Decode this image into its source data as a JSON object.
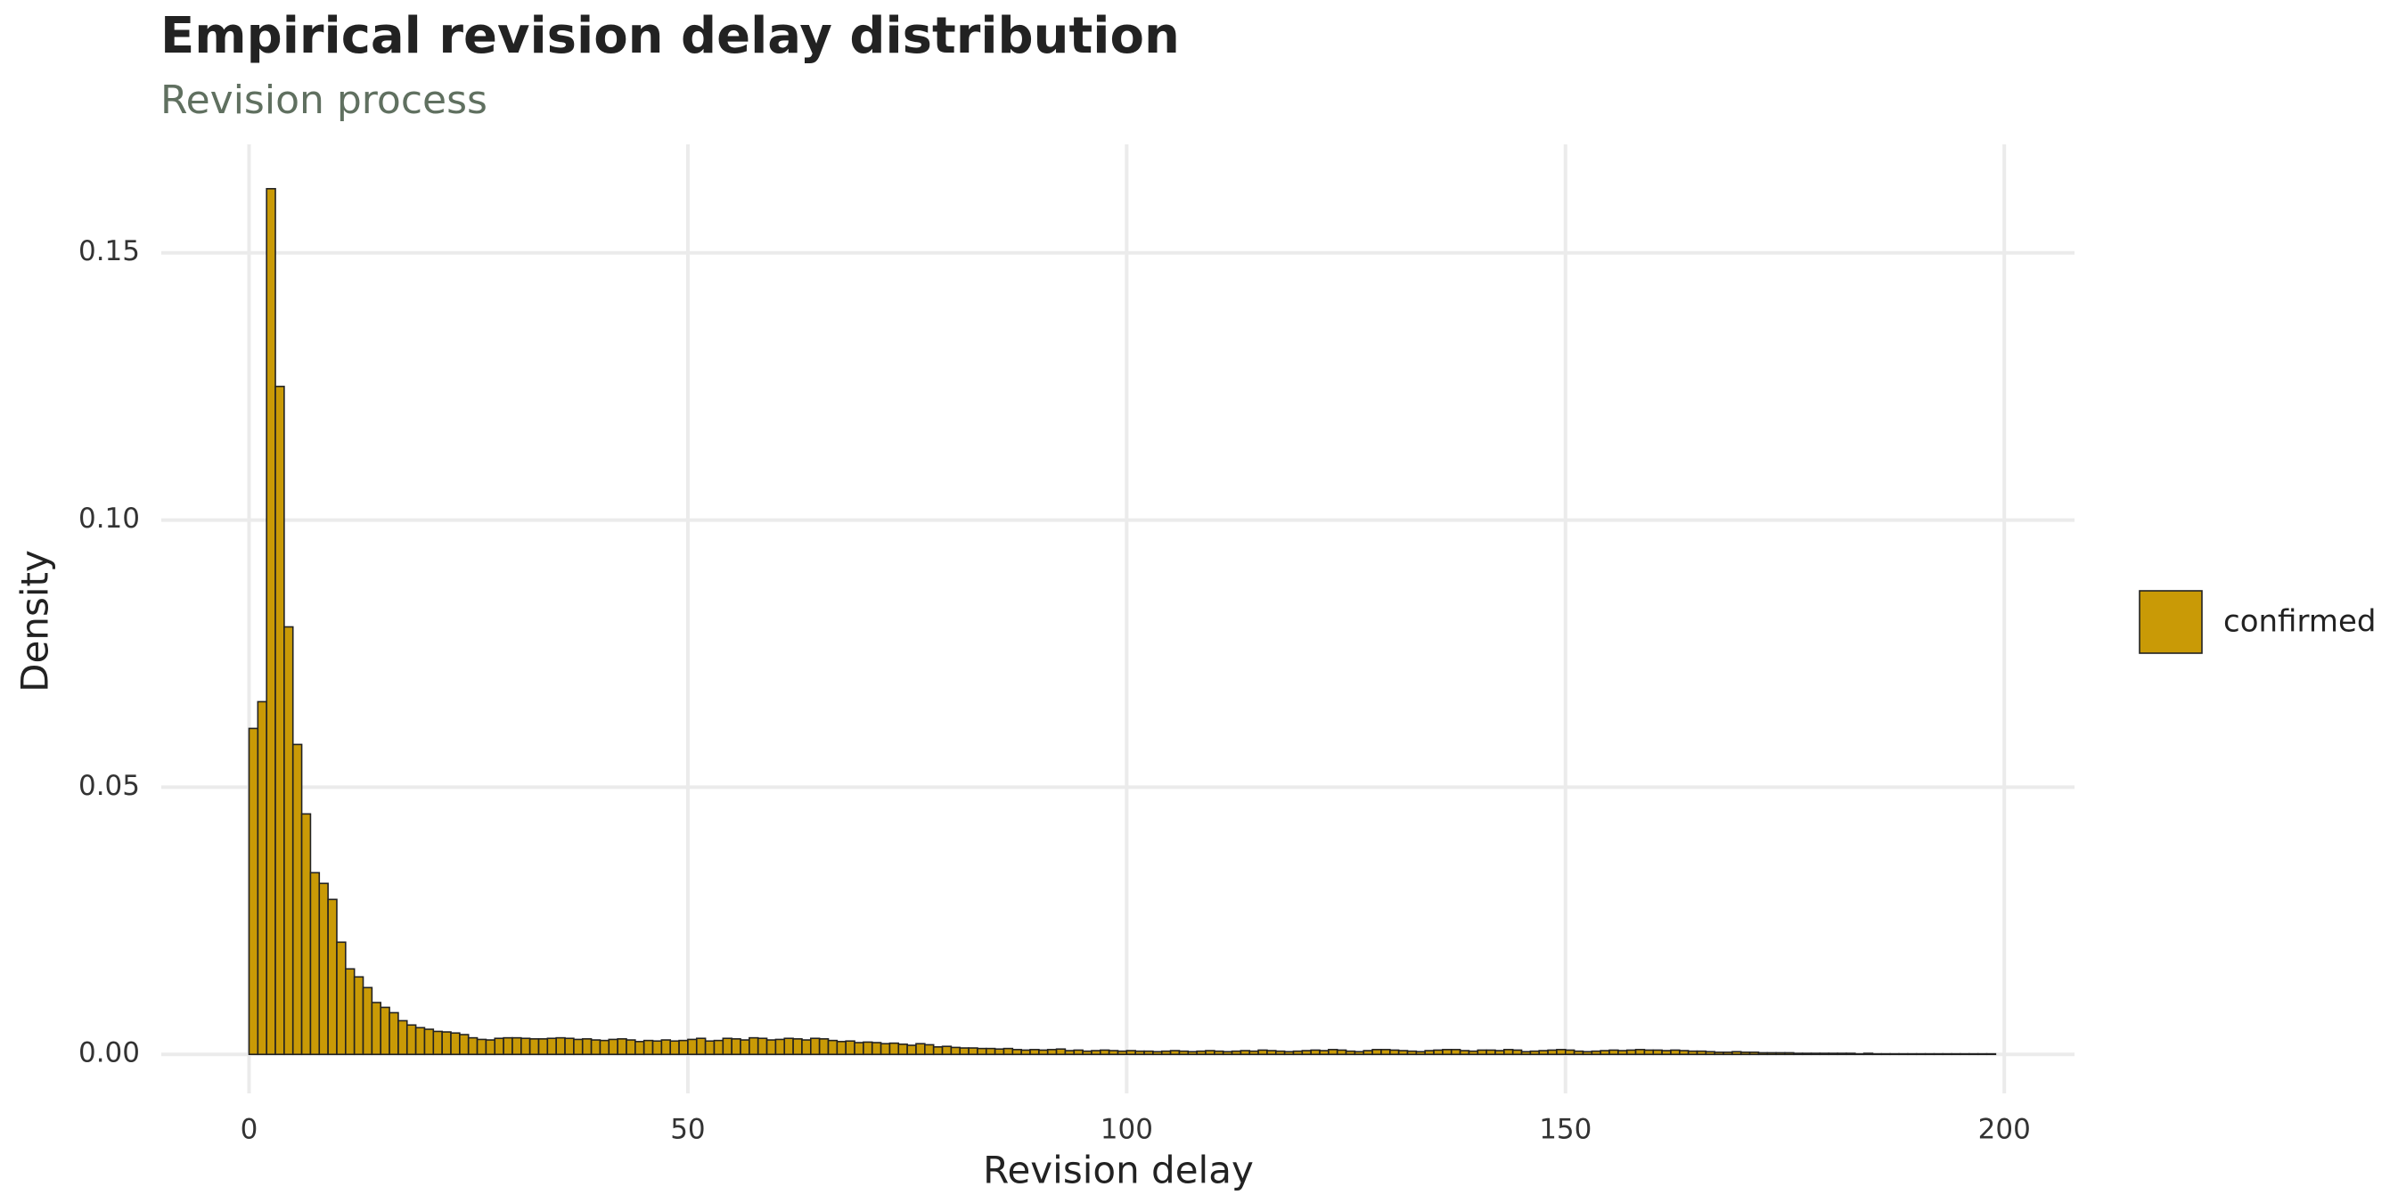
{
  "chart_data": {
    "type": "histogram",
    "title": "Empirical revision delay distribution",
    "subtitle": "Revision process",
    "x_label": "Revision delay",
    "y_label": "Density",
    "bins": [
      0,
      1,
      2,
      3,
      4,
      5,
      6,
      7,
      8,
      9,
      10,
      11,
      12,
      13,
      14,
      15,
      16,
      17,
      18,
      19,
      20,
      21,
      22,
      23,
      24,
      25,
      26,
      27,
      28,
      29,
      30,
      31,
      32,
      33,
      34,
      35,
      36,
      37,
      38,
      39,
      40,
      41,
      42,
      43,
      44,
      45,
      46,
      47,
      48,
      49,
      50,
      51,
      52,
      53,
      54,
      55,
      56,
      57,
      58,
      59,
      60,
      61,
      62,
      63,
      64,
      65,
      66,
      67,
      68,
      69,
      70,
      71,
      72,
      73,
      74,
      75,
      76,
      77,
      78,
      79,
      80,
      81,
      82,
      83,
      84,
      85,
      86,
      87,
      88,
      89,
      90,
      91,
      92,
      93,
      94,
      95,
      96,
      97,
      98,
      99,
      100,
      101,
      102,
      103,
      104,
      105,
      106,
      107,
      108,
      109,
      110,
      111,
      112,
      113,
      114,
      115,
      116,
      117,
      118,
      119,
      120,
      121,
      122,
      123,
      124,
      125,
      126,
      127,
      128,
      129,
      130,
      131,
      132,
      133,
      134,
      135,
      136,
      137,
      138,
      139,
      140,
      141,
      142,
      143,
      144,
      145,
      146,
      147,
      148,
      149,
      150,
      151,
      152,
      153,
      154,
      155,
      156,
      157,
      158,
      159,
      160,
      161,
      162,
      163,
      164,
      165,
      166,
      167,
      168,
      169,
      170,
      171,
      172,
      173,
      174,
      175,
      176,
      177,
      178,
      179,
      180,
      181,
      182,
      183,
      184,
      185,
      186,
      187,
      188,
      189,
      190,
      191,
      192,
      193,
      194,
      195,
      196,
      197,
      198,
      199
    ],
    "series": [
      {
        "name": "confirmed",
        "color": "#c99a06",
        "values": [
          0.061,
          0.066,
          0.162,
          0.125,
          0.08,
          0.058,
          0.045,
          0.034,
          0.032,
          0.029,
          0.021,
          0.016,
          0.0145,
          0.0125,
          0.0097,
          0.0088,
          0.0078,
          0.0063,
          0.0055,
          0.005,
          0.0047,
          0.0043,
          0.0042,
          0.004,
          0.0037,
          0.0031,
          0.0028,
          0.0027,
          0.003,
          0.0031,
          0.0031,
          0.003,
          0.0029,
          0.0029,
          0.003,
          0.0031,
          0.003,
          0.0028,
          0.0029,
          0.0027,
          0.0026,
          0.0028,
          0.0029,
          0.0027,
          0.0024,
          0.0026,
          0.0025,
          0.0027,
          0.0025,
          0.0026,
          0.0028,
          0.003,
          0.0025,
          0.0026,
          0.003,
          0.0029,
          0.0027,
          0.0031,
          0.003,
          0.0027,
          0.0028,
          0.003,
          0.0029,
          0.0027,
          0.003,
          0.0029,
          0.0026,
          0.0024,
          0.0025,
          0.0022,
          0.0023,
          0.0022,
          0.002,
          0.0021,
          0.0019,
          0.0017,
          0.002,
          0.0018,
          0.0014,
          0.0015,
          0.0013,
          0.0012,
          0.0012,
          0.0011,
          0.0011,
          0.001,
          0.0011,
          0.0009,
          0.0008,
          0.0009,
          0.0008,
          0.0009,
          0.001,
          0.0007,
          0.0008,
          0.0006,
          0.0007,
          0.0008,
          0.0007,
          0.0006,
          0.0007,
          0.0006,
          0.0006,
          0.0005,
          0.0006,
          0.0007,
          0.0006,
          0.0005,
          0.0006,
          0.0007,
          0.0006,
          0.0005,
          0.0006,
          0.0007,
          0.0006,
          0.0008,
          0.0007,
          0.0006,
          0.0005,
          0.0006,
          0.0007,
          0.0008,
          0.0007,
          0.0009,
          0.0008,
          0.0006,
          0.0005,
          0.0007,
          0.0009,
          0.0009,
          0.0008,
          0.0007,
          0.0006,
          0.0005,
          0.0007,
          0.0008,
          0.0009,
          0.0009,
          0.0007,
          0.0006,
          0.0008,
          0.0008,
          0.0007,
          0.0009,
          0.0008,
          0.0005,
          0.0006,
          0.0007,
          0.0008,
          0.0009,
          0.0008,
          0.0006,
          0.0005,
          0.0006,
          0.0007,
          0.0008,
          0.0007,
          0.0008,
          0.0009,
          0.0008,
          0.0008,
          0.0007,
          0.0008,
          0.0007,
          0.0006,
          0.0006,
          0.0005,
          0.0004,
          0.0004,
          0.0005,
          0.0004,
          0.0004,
          0.0003,
          0.0003,
          0.0003,
          0.0003,
          0.0002,
          0.0002,
          0.0002,
          0.0002,
          0.0002,
          0.0002,
          0.0002,
          0.0001,
          0.0002,
          0.0001,
          0.0001,
          0.0001,
          0.0001,
          0.0001,
          0.0001,
          0.0001,
          0.0001,
          0.0001,
          0.0001,
          0.0001,
          0.0001,
          0.0001,
          0.0001
        ]
      }
    ],
    "xlim": [
      -10,
      208
    ],
    "ylim": [
      -0.0073,
      0.1703
    ],
    "xticks": [
      0,
      50,
      100,
      150,
      200
    ],
    "yticks": [
      {
        "value": 0,
        "label": "0.00"
      },
      {
        "value": 0.05,
        "label": "0.05"
      },
      {
        "value": 0.1,
        "label": "0.10"
      },
      {
        "value": 0.15,
        "label": "0.15"
      }
    ],
    "grid": true,
    "legend": "right"
  }
}
